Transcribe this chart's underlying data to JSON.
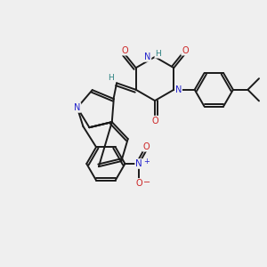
{
  "background_color": "#efefef",
  "bond_color": "#1a1a1a",
  "atom_colors": {
    "N": "#2222cc",
    "O": "#cc2222",
    "H": "#2a8080",
    "C": "#1a1a1a"
  },
  "figsize": [
    3.0,
    3.0
  ],
  "dpi": 100
}
